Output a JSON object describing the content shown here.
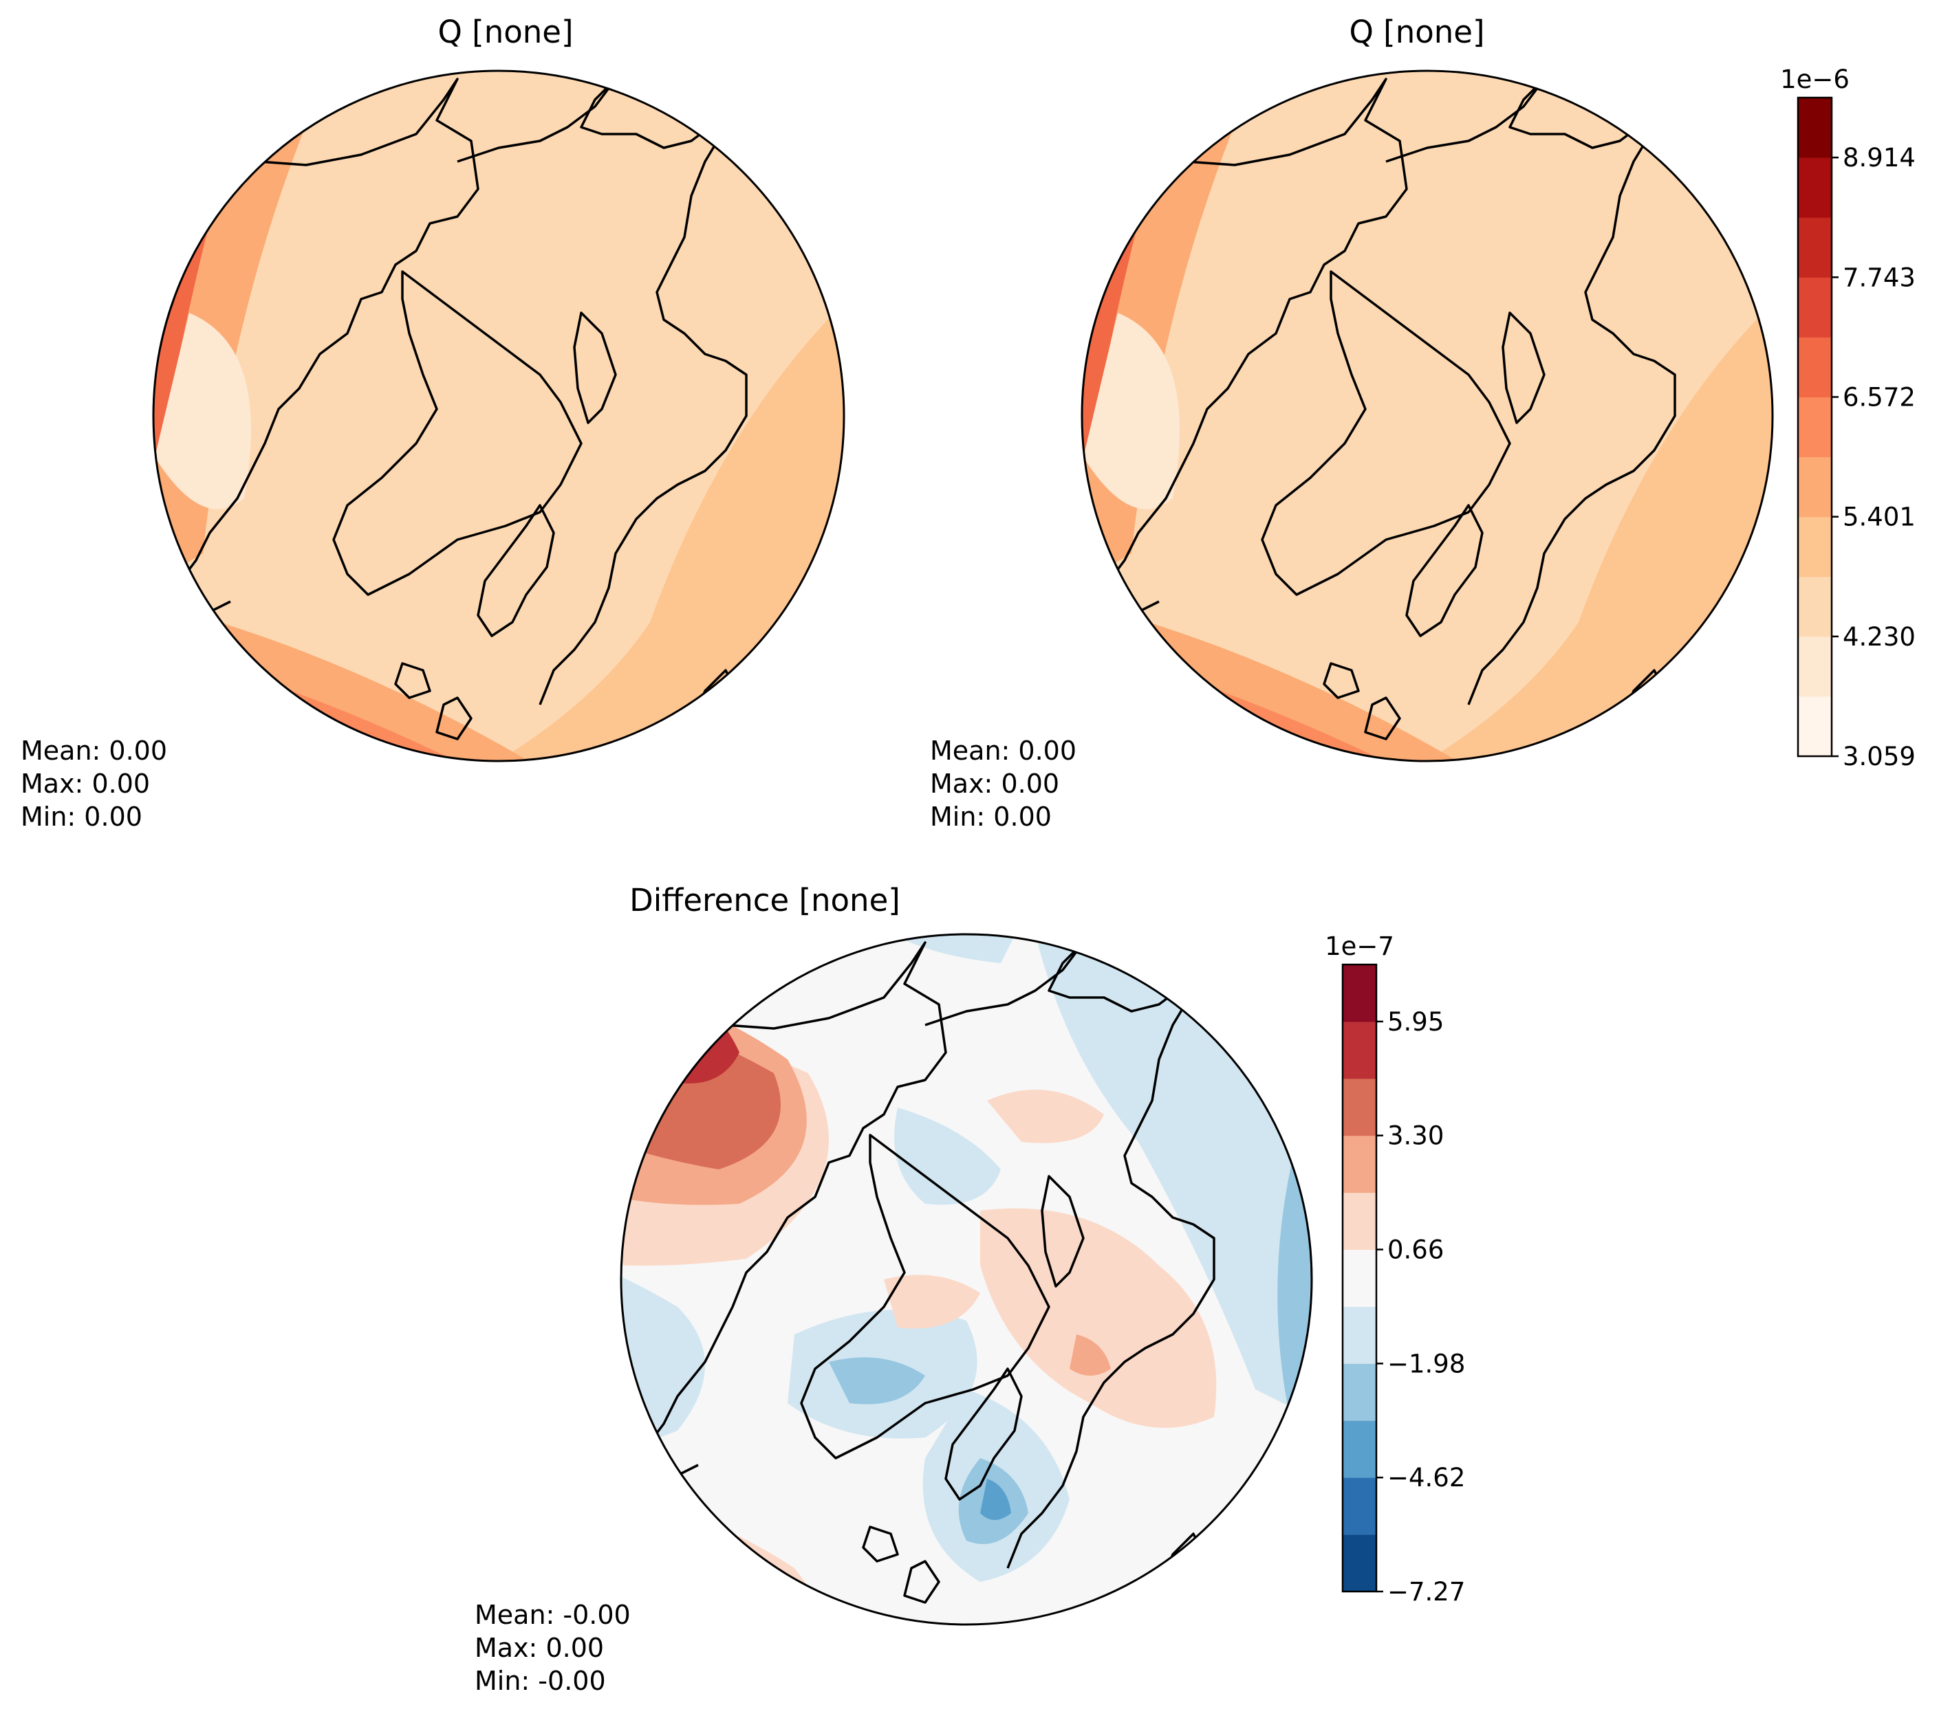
{
  "panels": [
    {
      "title": "Q [none]",
      "stats": {
        "mean": "Mean:  0.00",
        "max": "Max:  0.00",
        "min": "Min:  0.00"
      }
    },
    {
      "title": "Q [none]",
      "stats": {
        "mean": "Mean:  0.00",
        "max": "Max:  0.00",
        "min": "Min:  0.00"
      }
    },
    {
      "title": "Difference [none]",
      "stats": {
        "mean": "Mean: -0.00",
        "max": "Max:  0.00",
        "min": "Min: -0.00"
      }
    }
  ],
  "colorbars": [
    {
      "exponent": "1e−6",
      "ticks": [
        "8.914",
        "7.743",
        "6.572",
        "5.401",
        "4.230",
        "3.059"
      ],
      "colors": [
        "#fff5eb",
        "#fde8d2",
        "#fdd9b3",
        "#fdc590",
        "#fcab74",
        "#fb8a5c",
        "#f26945",
        "#df4634",
        "#c5281f",
        "#a80e0f",
        "#7f0000"
      ]
    },
    {
      "exponent": "1e−7",
      "ticks": [
        "5.95",
        "3.30",
        "0.66",
        "−1.98",
        "−4.62",
        "−7.27"
      ],
      "colors": [
        "#0d4a87",
        "#2b6fb0",
        "#5aa0cd",
        "#96c6e0",
        "#d2e6f1",
        "#f7f7f7",
        "#fbd9c8",
        "#f4a98a",
        "#d86e57",
        "#bd3036",
        "#8b0c24"
      ]
    }
  ]
}
